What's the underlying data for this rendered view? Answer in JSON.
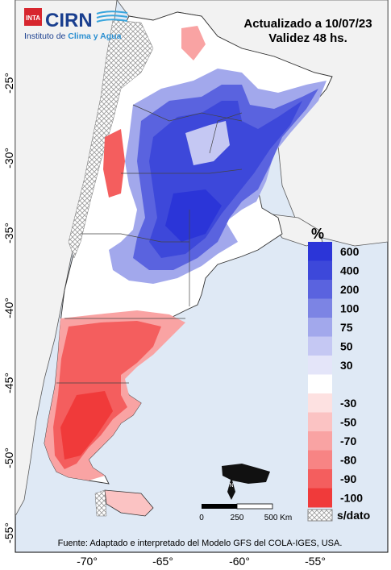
{
  "header": {
    "logo_inta": "INTA",
    "logo_cirn": "CIRN",
    "logo_subtitle_a": "Instituto de ",
    "logo_subtitle_b": "Clima y Agua",
    "updated": "Actualizado a 10/07/23",
    "validity": "Validez 48 hs."
  },
  "axes": {
    "lat_ticks": [
      "-25°",
      "-30°",
      "-35°",
      "-40°",
      "-45°",
      "-50°",
      "-55°"
    ],
    "lon_ticks": [
      "-70°",
      "-65°",
      "-60°",
      "-55°"
    ]
  },
  "legend": {
    "unit": "%",
    "classes": [
      {
        "label": "600",
        "color": "#2b35d8"
      },
      {
        "label": "400",
        "color": "#3d48da"
      },
      {
        "label": "200",
        "color": "#5a63df"
      },
      {
        "label": "100",
        "color": "#7c84e4"
      },
      {
        "label": "75",
        "color": "#a2a8ec"
      },
      {
        "label": "50",
        "color": "#c5c8f3"
      },
      {
        "label": "30",
        "color": "#e4e5f9"
      },
      {
        "label": "",
        "color": "#ffffff"
      },
      {
        "label": "-30",
        "color": "#fde1e1"
      },
      {
        "label": "-50",
        "color": "#fbc3c3"
      },
      {
        "label": "-70",
        "color": "#f9a3a3"
      },
      {
        "label": "-80",
        "color": "#f78484"
      },
      {
        "label": "-90",
        "color": "#f45e5e"
      },
      {
        "label": "-100",
        "color": "#f03a3a"
      }
    ],
    "nodata": "s/dato"
  },
  "scale": {
    "ticks": [
      "0",
      "250",
      "500 Km"
    ]
  },
  "north": "N",
  "source": "Fuente: Adaptado e interpretado del Modelo GFS del COLA-IGES, USA."
}
